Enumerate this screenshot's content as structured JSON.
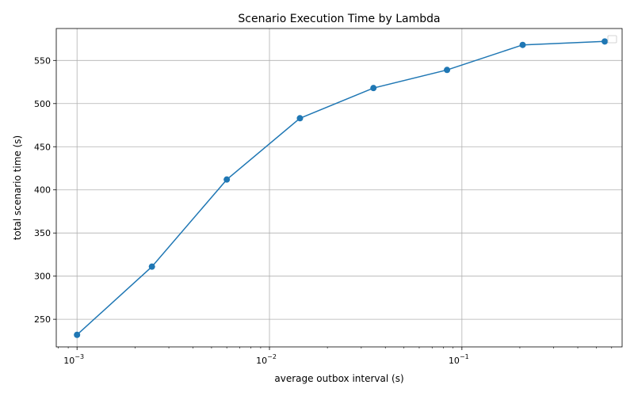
{
  "chart_data": {
    "type": "line",
    "title": "Scenario Execution Time by Lambda",
    "xlabel": "average outbox interval (s)",
    "ylabel": "total scenario time (s)",
    "xscale": "log",
    "xlim": [
      0.00078,
      0.68
    ],
    "ylim": [
      218,
      587
    ],
    "grid": true,
    "legend": "top-right",
    "x_ticks": [
      {
        "value": 0.001,
        "base": "10",
        "exp": "−3"
      },
      {
        "value": 0.01,
        "base": "10",
        "exp": "−2"
      },
      {
        "value": 0.1,
        "base": "10",
        "exp": "−1"
      }
    ],
    "y_ticks": [
      250,
      300,
      350,
      400,
      450,
      500,
      550
    ],
    "series": [
      {
        "color": "#1f77b4",
        "x": [
          0.001,
          0.00245,
          0.006,
          0.0144,
          0.0347,
          0.0837,
          0.2069,
          0.5525
        ],
        "y": [
          232,
          311,
          412,
          483,
          518,
          539,
          568,
          572
        ]
      }
    ]
  }
}
